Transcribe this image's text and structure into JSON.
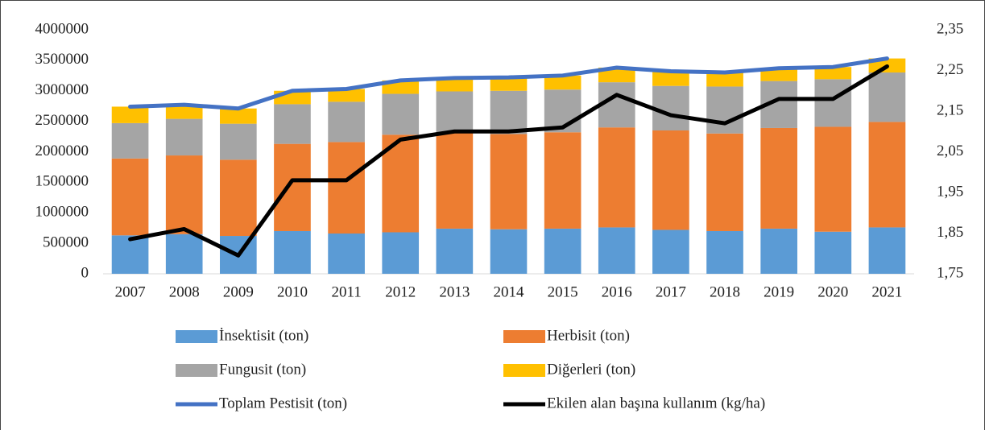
{
  "chart_data": {
    "type": "bar",
    "categories": [
      "2007",
      "2008",
      "2009",
      "2010",
      "2011",
      "2012",
      "2013",
      "2014",
      "2015",
      "2016",
      "2017",
      "2018",
      "2019",
      "2020",
      "2021"
    ],
    "stacked": true,
    "series": [
      {
        "name": "İnsektisit (ton)",
        "type": "bar",
        "color": "#5b9bd5",
        "values": [
          630000,
          650000,
          620000,
          700000,
          660000,
          680000,
          740000,
          730000,
          740000,
          760000,
          720000,
          700000,
          740000,
          690000,
          760000
        ]
      },
      {
        "name": "Herbisit (ton)",
        "type": "bar",
        "color": "#ed7d31",
        "values": [
          1260000,
          1290000,
          1250000,
          1430000,
          1500000,
          1600000,
          1570000,
          1560000,
          1580000,
          1640000,
          1630000,
          1600000,
          1650000,
          1720000,
          1730000
        ]
      },
      {
        "name": "Fungusit (ton)",
        "type": "bar",
        "color": "#a5a5a5",
        "values": [
          580000,
          600000,
          590000,
          650000,
          660000,
          670000,
          680000,
          710000,
          700000,
          740000,
          730000,
          770000,
          770000,
          780000,
          810000
        ]
      },
      {
        "name": "Diğerleri (ton)",
        "type": "bar",
        "color": "#ffc000",
        "values": [
          270000,
          230000,
          250000,
          220000,
          210000,
          220000,
          220000,
          220000,
          230000,
          240000,
          240000,
          230000,
          210000,
          200000,
          230000
        ]
      },
      {
        "name": "Toplam Pestisit (ton)",
        "type": "line",
        "color": "#4472c4",
        "values": [
          2740000,
          2770000,
          2710000,
          3000000,
          3030000,
          3170000,
          3210000,
          3220000,
          3250000,
          3380000,
          3320000,
          3300000,
          3370000,
          3390000,
          3530000
        ]
      },
      {
        "name": "Ekilen alan başına kullanım (kg/ha)",
        "type": "line",
        "axis": "y2",
        "color": "#000000",
        "values": [
          1.835,
          1.86,
          1.795,
          1.98,
          1.98,
          2.08,
          2.1,
          2.1,
          2.11,
          2.19,
          2.14,
          2.12,
          2.18,
          2.18,
          2.26
        ]
      }
    ],
    "ylim": [
      0,
      4000000
    ],
    "yticks": [
      0,
      500000,
      1000000,
      1500000,
      2000000,
      2500000,
      3000000,
      3500000,
      4000000
    ],
    "y2lim": [
      1.75,
      2.35
    ],
    "y2ticks": [
      {
        "value": 1.75,
        "label": "1,75"
      },
      {
        "value": 1.85,
        "label": "1,85"
      },
      {
        "value": 1.95,
        "label": "1,95"
      },
      {
        "value": 2.05,
        "label": "2,05"
      },
      {
        "value": 2.15,
        "label": "2,15"
      },
      {
        "value": 2.25,
        "label": "2,25"
      },
      {
        "value": 2.35,
        "label": "2,35"
      }
    ],
    "grid": false,
    "legend": "bottom"
  }
}
